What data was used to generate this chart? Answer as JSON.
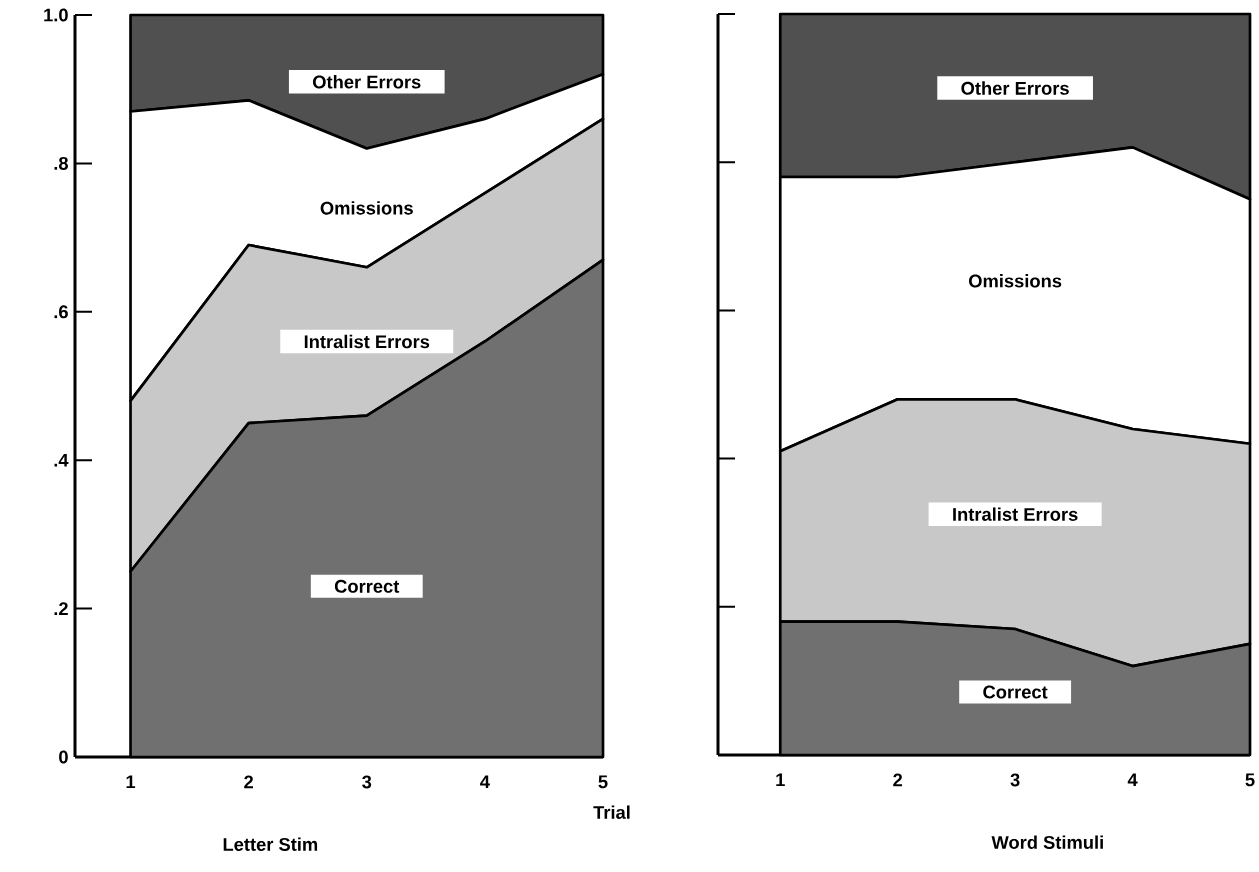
{
  "chart_data": [
    {
      "type": "area",
      "stacked": true,
      "title": "Letter Stim",
      "xlabel": "Trial",
      "x": [
        1,
        2,
        3,
        4,
        5
      ],
      "xlim": [
        0.53,
        5
      ],
      "xticks": [
        1,
        2,
        3,
        4,
        5
      ],
      "ylim": [
        0,
        1
      ],
      "yticks": [
        {
          "value": 0,
          "label": "0"
        },
        {
          "value": 0.2,
          "label": ".2"
        },
        {
          "value": 0.4,
          "label": ".4"
        },
        {
          "value": 0.6,
          "label": ".6"
        },
        {
          "value": 0.8,
          "label": ".8"
        },
        {
          "value": 1.0,
          "label": "1.0"
        }
      ],
      "series": [
        {
          "name": "Correct",
          "color": "#707070",
          "values": [
            0.25,
            0.45,
            0.46,
            0.56,
            0.67
          ]
        },
        {
          "name": "Intralist Errors",
          "color": "#c8c8c8",
          "values": [
            0.23,
            0.24,
            0.2,
            0.2,
            0.19
          ]
        },
        {
          "name": "Omissions",
          "color": "#ffffff",
          "values": [
            0.39,
            0.195,
            0.16,
            0.1,
            0.06
          ]
        },
        {
          "name": "Other Errors",
          "color": "#505050",
          "values": [
            0.13,
            0.115,
            0.18,
            0.14,
            0.08
          ]
        }
      ]
    },
    {
      "type": "area",
      "stacked": true,
      "title": "Word Stimuli",
      "x": [
        1,
        2,
        3,
        4,
        5
      ],
      "xlim": [
        0.47,
        5
      ],
      "xticks": [
        1,
        2,
        3,
        4,
        5
      ],
      "ylim": [
        0,
        1
      ],
      "yticks": [
        0,
        0.2,
        0.4,
        0.6,
        0.8,
        1.0
      ],
      "tick_labels": "x",
      "series": [
        {
          "name": "Correct",
          "color": "#707070",
          "values": [
            0.18,
            0.18,
            0.17,
            0.12,
            0.15
          ]
        },
        {
          "name": "Intralist Errors",
          "color": "#c8c8c8",
          "values": [
            0.23,
            0.3,
            0.31,
            0.32,
            0.27
          ]
        },
        {
          "name": "Omissions",
          "color": "#ffffff",
          "values": [
            0.37,
            0.3,
            0.32,
            0.38,
            0.33
          ]
        },
        {
          "name": "Other Errors",
          "color": "#505050",
          "values": [
            0.22,
            0.22,
            0.2,
            0.18,
            0.25
          ]
        }
      ]
    }
  ]
}
